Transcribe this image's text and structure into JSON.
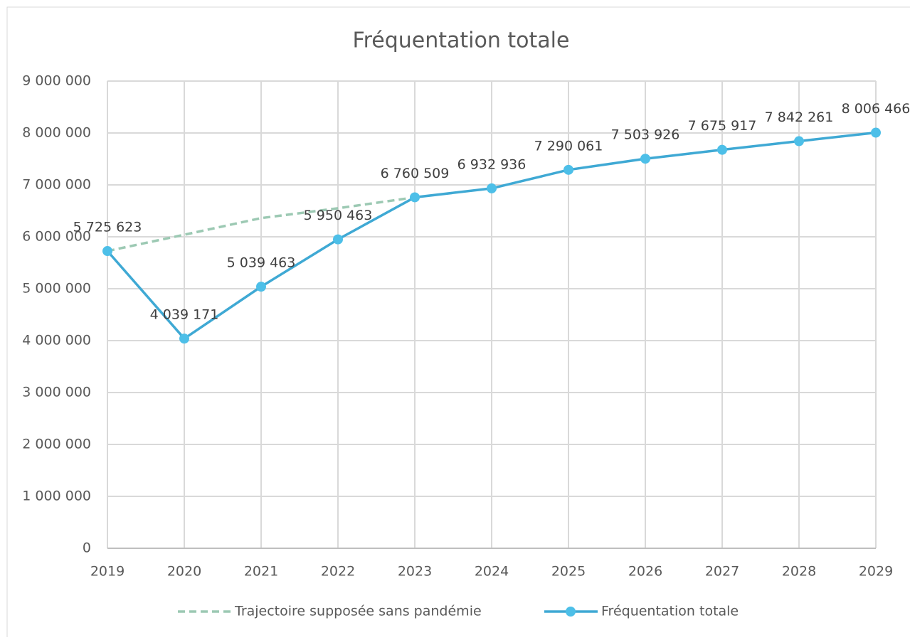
{
  "chart_data": {
    "type": "line",
    "title": "Fréquentation totale",
    "categories": [
      "2019",
      "2020",
      "2021",
      "2022",
      "2023",
      "2024",
      "2025",
      "2026",
      "2027",
      "2028",
      "2029"
    ],
    "series": [
      {
        "name": "Trajectoire supposée sans pandémie",
        "color": "#9cc9b3",
        "dashed": true,
        "markers": false,
        "values": [
          5725623,
          6040000,
          6360000,
          6550000,
          6760509,
          null,
          null,
          null,
          null,
          null,
          null
        ]
      },
      {
        "name": "Fréquentation totale",
        "color": "#3fa9d4",
        "marker_color": "#4dbfe8",
        "markers": true,
        "values": [
          5725623,
          4039171,
          5039463,
          5950463,
          6760509,
          6932936,
          7290061,
          7503926,
          7675917,
          7842261,
          8006466
        ],
        "value_labels": [
          "5 725 623",
          "4 039 171",
          "5 039 463",
          "5 950 463",
          "6 760 509",
          "6 932 936",
          "7 290 061",
          "7 503 926",
          "7 675 917",
          "7 842 261",
          "8 006 466"
        ]
      }
    ],
    "ylim": [
      0,
      9000000
    ],
    "yticks": [
      {
        "value": 0,
        "label": "0"
      },
      {
        "value": 1000000,
        "label": "1 000 000"
      },
      {
        "value": 2000000,
        "label": "2 000 000"
      },
      {
        "value": 3000000,
        "label": "3 000 000"
      },
      {
        "value": 4000000,
        "label": "4 000 000"
      },
      {
        "value": 5000000,
        "label": "5 000 000"
      },
      {
        "value": 6000000,
        "label": "6 000 000"
      },
      {
        "value": 7000000,
        "label": "7 000 000"
      },
      {
        "value": 8000000,
        "label": "8 000 000"
      },
      {
        "value": 9000000,
        "label": "9 000 000"
      }
    ],
    "grid": true,
    "legend": "bottom"
  }
}
